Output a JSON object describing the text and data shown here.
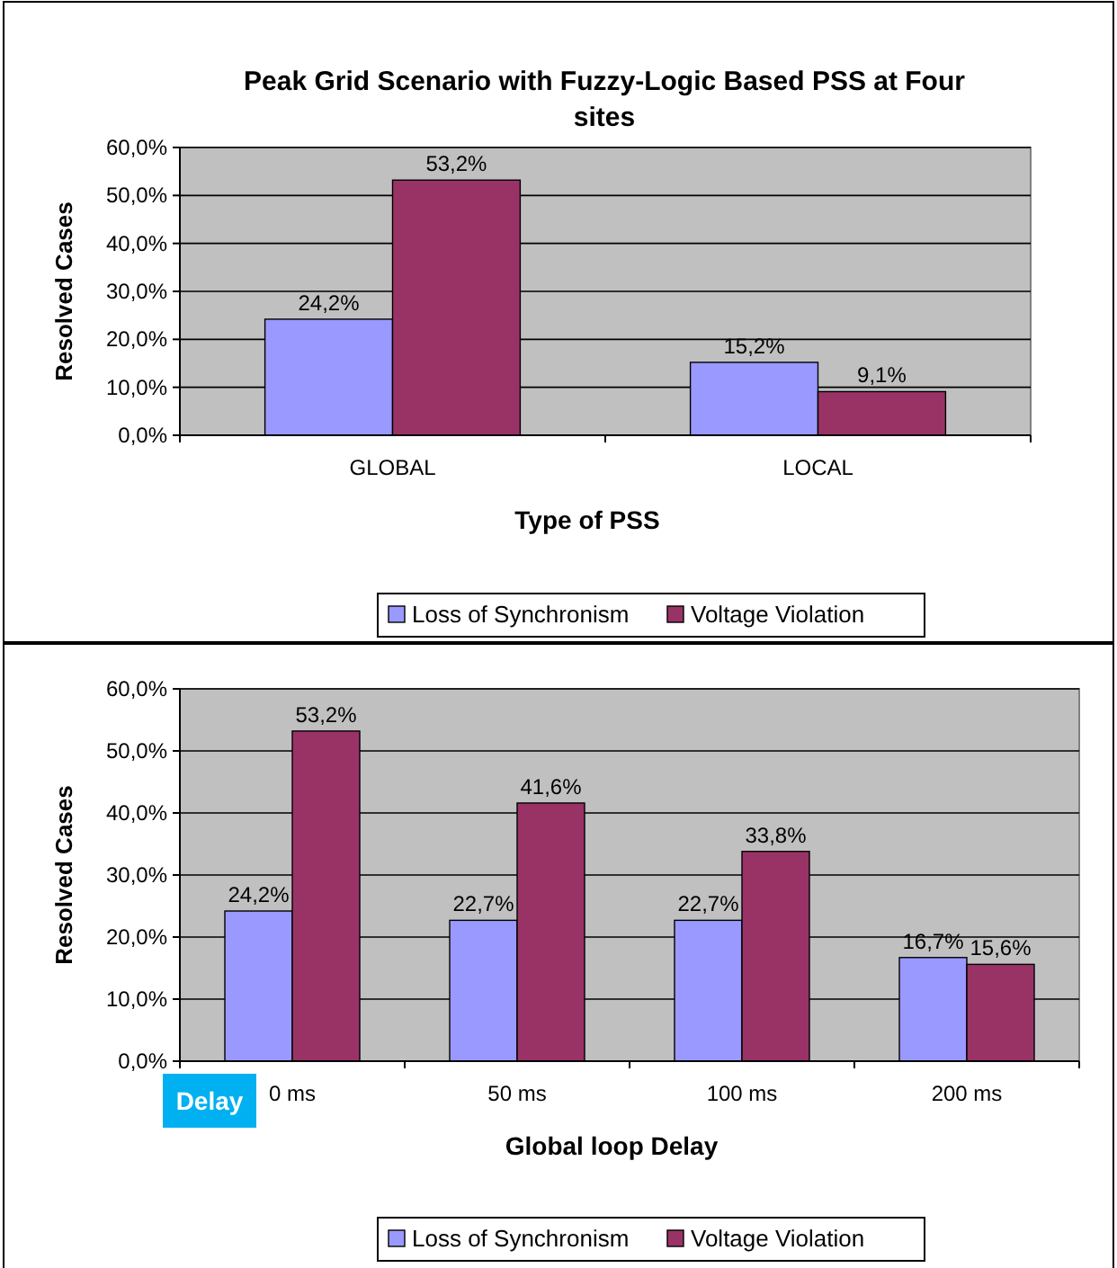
{
  "chart_data": [
    {
      "type": "bar",
      "title": "Peak Grid Scenario with  Fuzzy-Logic Based PSS at Four sites",
      "xlabel": "Type of PSS",
      "ylabel": "Resolved Cases",
      "categories": [
        "GLOBAL",
        "LOCAL"
      ],
      "series": [
        {
          "name": "Loss of Synchronism",
          "color": "#9999ff",
          "values": [
            24.2,
            15.2
          ],
          "value_labels": [
            "24,2%",
            "15,2%"
          ]
        },
        {
          "name": "Voltage Violation",
          "color": "#993366",
          "values": [
            53.2,
            9.1
          ],
          "value_labels": [
            "53,2%",
            "9,1%"
          ]
        }
      ],
      "ylim": [
        0,
        60
      ],
      "yticks": [
        {
          "value": 0,
          "label": "0,0%"
        },
        {
          "value": 10,
          "label": "10,0%"
        },
        {
          "value": 20,
          "label": "20,0%"
        },
        {
          "value": 30,
          "label": "30,0%"
        },
        {
          "value": 40,
          "label": "40,0%"
        },
        {
          "value": 50,
          "label": "50,0%"
        },
        {
          "value": 60,
          "label": "60,0%"
        }
      ],
      "grid": "y",
      "legend": "bottom"
    },
    {
      "type": "bar",
      "xlabel": "Global loop Delay",
      "ylabel": "Resolved  Cases",
      "categories": [
        "0 ms",
        "50 ms",
        "100 ms",
        "200 ms"
      ],
      "series": [
        {
          "name": "Loss of Synchronism",
          "color": "#9999ff",
          "values": [
            24.2,
            22.7,
            22.7,
            16.7
          ],
          "value_labels": [
            "24,2%",
            "22,7%",
            "22,7%",
            "16,7%"
          ]
        },
        {
          "name": "Voltage Violation",
          "color": "#993366",
          "values": [
            53.2,
            41.6,
            33.8,
            15.6
          ],
          "value_labels": [
            "53,2%",
            "41,6%",
            "33,8%",
            "15,6%"
          ]
        }
      ],
      "ylim": [
        0,
        60
      ],
      "yticks": [
        {
          "value": 0,
          "label": "0,0%"
        },
        {
          "value": 10,
          "label": "10,0%"
        },
        {
          "value": 20,
          "label": "20,0%"
        },
        {
          "value": 30,
          "label": "30,0%"
        },
        {
          "value": 40,
          "label": "40,0%"
        },
        {
          "value": 50,
          "label": "50,0%"
        },
        {
          "value": 60,
          "label": "60,0%"
        }
      ],
      "grid": "y",
      "legend": "bottom",
      "annotations": [
        "Delay"
      ]
    }
  ]
}
